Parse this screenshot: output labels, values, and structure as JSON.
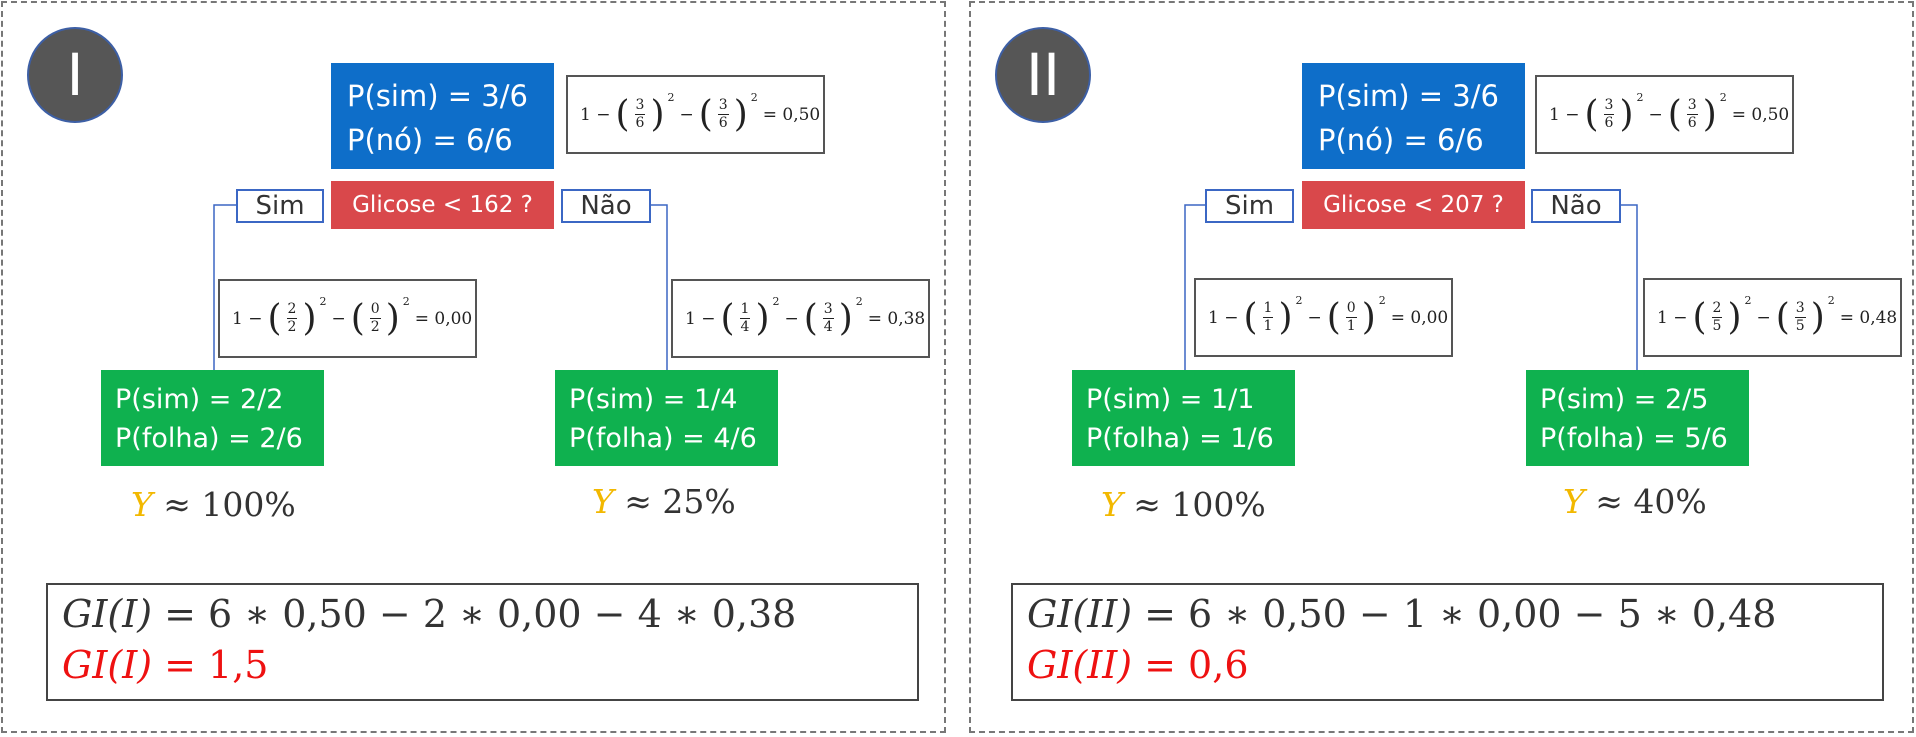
{
  "colors": {
    "root": "#0e6ec9",
    "condition": "#d9484b",
    "leaf": "#0fb14f",
    "branch_border": "#3b67c4",
    "y_symbol": "#f2b800",
    "gi_result": "#ee1111"
  },
  "panels": [
    {
      "badge": "I",
      "root": {
        "p_sim": "P(sim) = 3/6",
        "p_no": "P(nó) = 6/6"
      },
      "root_gini": {
        "prefix": "1 −",
        "n1": "3",
        "d1": "6",
        "n2": "3",
        "d2": "6",
        "result": "= 0,50"
      },
      "condition": "Glicose < 162 ?",
      "branch_yes": "Sim",
      "branch_no": "Não",
      "left_gini": {
        "prefix": "1 −",
        "n1": "2",
        "d1": "2",
        "n2": "0",
        "d2": "2",
        "result": "= 0,00"
      },
      "right_gini": {
        "prefix": "1 −",
        "n1": "1",
        "d1": "4",
        "n2": "3",
        "d2": "4",
        "result": "= 0,38"
      },
      "left_leaf": {
        "p_sim": "P(sim) = 2/2",
        "p_folha": "P(folha) = 2/6",
        "y": "Y",
        "approx": "≈ 100%"
      },
      "right_leaf": {
        "p_sim": "P(sim) = 1/4",
        "p_folha": "P(folha) = 4/6",
        "y": "Y",
        "approx": "≈ 25%"
      },
      "gi_name": "GI(I)",
      "gi_expression": "= 6 ∗ 0,50  − 2 ∗ 0,00  − 4 ∗ 0,38",
      "gi_result": "= 1,5"
    },
    {
      "badge": "II",
      "root": {
        "p_sim": "P(sim) = 3/6",
        "p_no": "P(nó) = 6/6"
      },
      "root_gini": {
        "prefix": "1 −",
        "n1": "3",
        "d1": "6",
        "n2": "3",
        "d2": "6",
        "result": "= 0,50"
      },
      "condition": "Glicose < 207 ?",
      "branch_yes": "Sim",
      "branch_no": "Não",
      "left_gini": {
        "prefix": "1 −",
        "n1": "1",
        "d1": "1",
        "n2": "0",
        "d2": "1",
        "result": "= 0,00"
      },
      "right_gini": {
        "prefix": "1 −",
        "n1": "2",
        "d1": "5",
        "n2": "3",
        "d2": "5",
        "result": "= 0,48"
      },
      "left_leaf": {
        "p_sim": "P(sim) = 1/1",
        "p_folha": "P(folha) = 1/6",
        "y": "Y",
        "approx": "≈ 100%"
      },
      "right_leaf": {
        "p_sim": "P(sim) = 2/5",
        "p_folha": "P(folha) = 5/6",
        "y": "Y",
        "approx": "≈ 40%"
      },
      "gi_name": "GI(II)",
      "gi_expression": "= 6 ∗ 0,50  − 1 ∗ 0,00  − 5 ∗ 0,48",
      "gi_result": "= 0,6"
    }
  ]
}
